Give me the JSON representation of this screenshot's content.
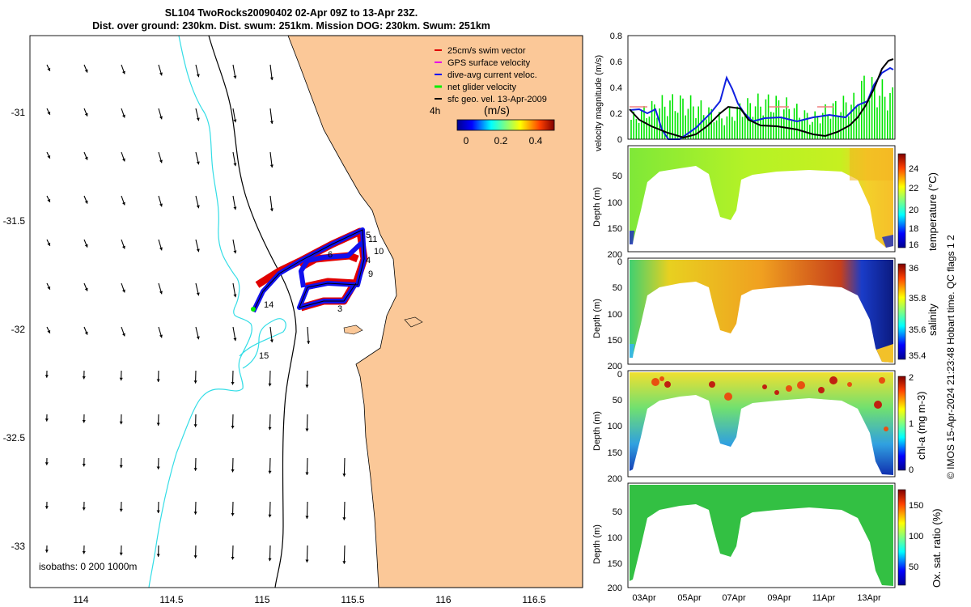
{
  "title": {
    "line1": "SL104 TwoRocks20090402 02-Apr 09Z to 13-Apr 23Z.",
    "line2": "Dist. over ground: 230km. Dist. swum: 251km. Mission DOG: 230km. Swum: 251km"
  },
  "map": {
    "x_ticks": [
      "114",
      "114.5",
      "115",
      "115.5",
      "116",
      "116.5"
    ],
    "y_ticks": [
      "-31",
      "-31.5",
      "-32",
      "-32.5",
      "-33"
    ],
    "isobaths_label": "isobaths: 0   200  1000m",
    "track_labels": [
      "3",
      "4",
      "5",
      "6",
      "9",
      "10",
      "11",
      "14",
      "15"
    ],
    "colors": {
      "land": "#fbc898",
      "ocean": "#ffffff",
      "isobath200": "#000000",
      "isobath1000": "#33dde6"
    }
  },
  "legend": {
    "items": [
      {
        "label": "25cm/s swim vector",
        "color": "#e00000"
      },
      {
        "label": "GPS surface velocity",
        "color": "#e600e6"
      },
      {
        "label": "dive-avg current veloc.",
        "color": "#0000ee"
      },
      {
        "label": "net glider velocity",
        "color": "#00ee00"
      },
      {
        "label": "sfc geo. vel. 13-Apr-2009",
        "color": "#000000"
      }
    ],
    "period_label": "4h",
    "colorbar_title": "(m/s)",
    "colorbar_ticks": [
      "0",
      "0.2",
      "0.4"
    ]
  },
  "velocity_panel": {
    "ylabel": "velocity magnitude (m/s)",
    "ylim": [
      0,
      0.8
    ],
    "y_ticks": [
      "0",
      "0.2",
      "0.4",
      "0.6",
      "0.8"
    ]
  },
  "sections": [
    {
      "cbar_label": "temperature (°C)",
      "cbar_ticks": [
        "16",
        "18",
        "20",
        "22",
        "24"
      ],
      "ylabel": "Depth (m)",
      "y_ticks": [
        "50",
        "100",
        "150",
        "200"
      ]
    },
    {
      "cbar_label": "salinity",
      "cbar_ticks": [
        "35.4",
        "35.6",
        "35.8",
        "36"
      ],
      "ylabel": "Depth (m)",
      "y_ticks": [
        "0",
        "50",
        "100",
        "150",
        "200"
      ]
    },
    {
      "cbar_label": "chl-a (mg m-3)",
      "cbar_ticks": [
        "0",
        "1",
        "2"
      ],
      "ylabel": "Depth (m)",
      "y_ticks": [
        "0",
        "50",
        "100",
        "150",
        "200"
      ]
    },
    {
      "cbar_label": "Ox. sat. ratio (%)",
      "cbar_ticks": [
        "50",
        "100",
        "150"
      ],
      "ylabel": "Depth (m)",
      "y_ticks": [
        "50",
        "100",
        "150",
        "200"
      ]
    }
  ],
  "time_ticks": [
    "03Apr",
    "05Apr",
    "07Apr",
    "09Apr",
    "11Apr",
    "13Apr"
  ],
  "side_label": "© IMOS 15-Apr-2024 21:23:48 Hobart time. QC flags 1  2"
}
